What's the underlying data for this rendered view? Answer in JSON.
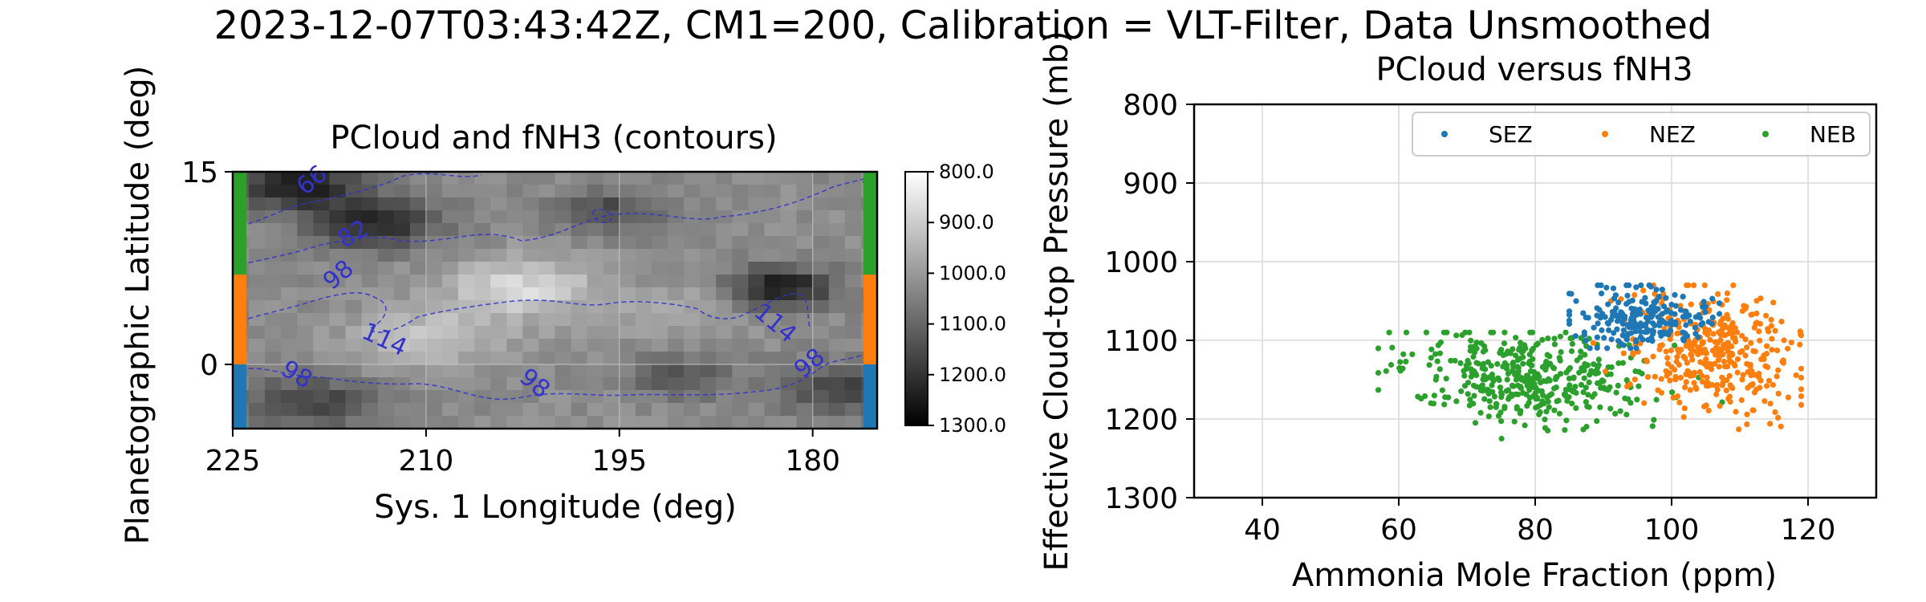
{
  "figure": {
    "suptitle": "2023-12-07T03:43:42Z, CM1=200, Calibration = VLT-Filter, Data Unsmoothed"
  },
  "colors": {
    "SEZ": "#1f77b4",
    "NEZ": "#ff7f0e",
    "NEB": "#2ca02c",
    "contour": "#3333cc",
    "grid": "#d9d9d9",
    "axis": "#000000"
  },
  "chart_data": [
    {
      "type": "heatmap",
      "title": "PCloud and fNH3 (contours)",
      "xlabel": "Sys. 1 Longitude (deg)",
      "ylabel": "Planetographic Latitude (deg)",
      "xlim": [
        225,
        175
      ],
      "ylim": [
        -5,
        15
      ],
      "xticks": [
        225,
        210,
        195,
        180
      ],
      "yticks": [
        0,
        15
      ],
      "grid": true,
      "colormap": "gray_r",
      "colorbar": {
        "ticks": [
          "800.0",
          "900.0",
          "1000.0",
          "1100.0",
          "1200.0",
          "1300.0"
        ],
        "range": [
          800,
          1300
        ]
      },
      "contour_labels": [
        "66",
        "82",
        "98",
        "114",
        "98",
        "98",
        "114",
        "98"
      ],
      "zone_bands": [
        {
          "name": "NEB",
          "lat_range": [
            7,
            15
          ],
          "color": "#2ca02c"
        },
        {
          "name": "NEZ",
          "lat_range": [
            0,
            7
          ],
          "color": "#ff7f0e"
        },
        {
          "name": "SEZ",
          "lat_range": [
            -5,
            0
          ],
          "color": "#1f77b4"
        }
      ]
    },
    {
      "type": "scatter",
      "title": "PCloud versus fNH3",
      "xlabel": "Ammonia Mole Fraction (ppm)",
      "ylabel": "Effective Cloud-top Pressure (mb)",
      "xlim": [
        30,
        130
      ],
      "ylim": [
        1300,
        800
      ],
      "xticks": [
        40,
        60,
        80,
        100,
        120
      ],
      "yticks": [
        800,
        900,
        1000,
        1100,
        1200,
        1300
      ],
      "grid": true,
      "legend": {
        "placement": "top-right",
        "ncol": 3
      },
      "series": [
        {
          "name": "SEZ",
          "x_range": [
            85,
            107
          ],
          "y_range": [
            1030,
            1110
          ],
          "center": [
            96,
            1070
          ]
        },
        {
          "name": "NEZ",
          "x_range": [
            84,
            119
          ],
          "y_range": [
            1030,
            1240
          ],
          "center": [
            105,
            1120
          ]
        },
        {
          "name": "NEB",
          "x_range": [
            57,
            110
          ],
          "y_range": [
            1090,
            1225
          ],
          "center": [
            79,
            1140
          ]
        }
      ]
    }
  ]
}
